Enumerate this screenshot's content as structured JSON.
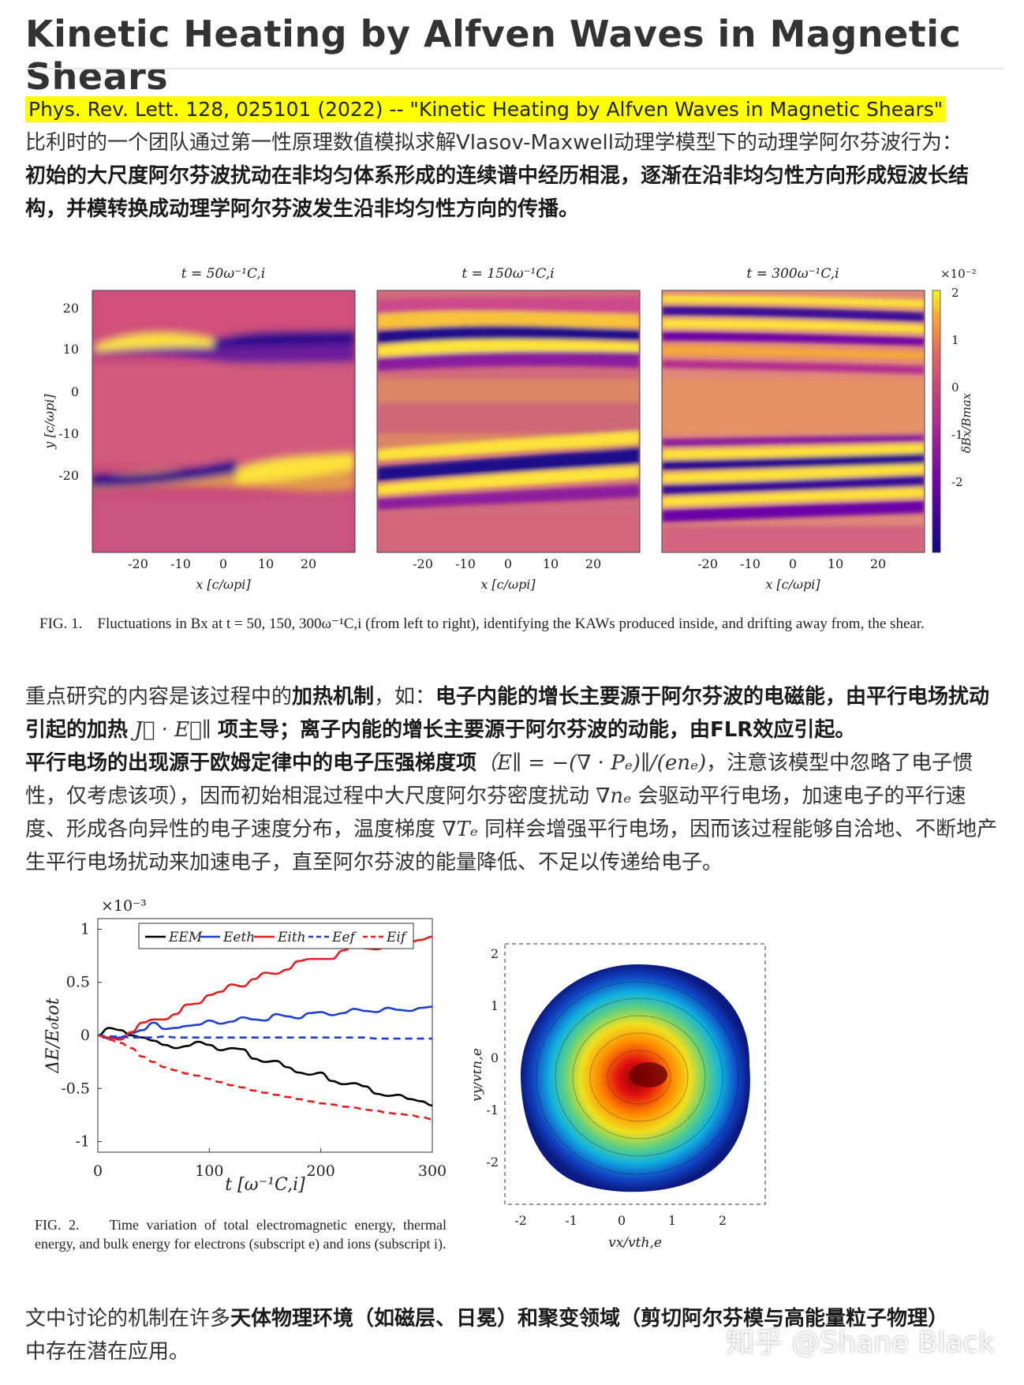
{
  "article": {
    "title": "Kinetic Heating by Alfven Waves in Magnetic Shears",
    "citation": "Phys. Rev. Lett. 128, 025101 (2022) -- \"Kinetic Heating by Alfven Waves in Magnetic Shears\"",
    "intro_plain": "比利时的一个团队通过第一性原理数值模拟求解Vlasov-Maxwell动理学模型下的动理学阿尔芬波行为：",
    "intro_bold": "初始的大尺度阿尔芬波扰动在非均匀体系形成的连续谱中经历相混，逐渐在沿非均匀性方向形成短波长结构，并模转换成动理学阿尔芬波发生沿非均匀性方向的传播。",
    "p2_a": "重点研究的内容是该过程中的",
    "p2_b": "加热机制",
    "p2_c": "，如：",
    "p2_d": "电子内能的增长主要源于阿尔芬波的电磁能，由平行电场扰动引起的加热",
    "p2_math1": "J⃗ · E⃗∥",
    "p2_e": "项主导；离子内能的增长主要源于阿尔芬波的动能，由FLR效应引起。",
    "p2_f": "平行电场的出现源于欧姆定律中的电子压强梯度项",
    "p2_math2": "（E∥ = −(∇ · Pₑ)∥/(enₑ)",
    "p2_g": "，注意该模型中忽略了电子惯性，仅考虑该项），因而初始相混过程中大尺度阿尔芬密度扰动",
    "p2_math3": "∇nₑ",
    "p2_h": "会驱动平行电场，加速电子的平行速度、形成各向异性的电子速度分布，温度梯度",
    "p2_math4": "∇Tₑ",
    "p2_i": "同样会增强平行电场，因而该过程能够自洽地、不断地产生平行电场扰动来加速电子，直至阿尔芬波的能量降低、不足以传递给电子。",
    "p3_a": "文中讨论的机制在许多",
    "p3_b": "天体物理环境（如磁层、日冕）和聚变领域（剪切阿尔芬模与高能量粒子物理）",
    "p3_c": "中存在潜在应用。",
    "watermark": "知乎 @Shane Black"
  },
  "figure1": {
    "panel_titles": [
      "t = 50ω⁻¹C,i",
      "t = 150ω⁻¹C,i",
      "t = 300ω⁻¹C,i"
    ],
    "x_ticks": [
      "-20",
      "-10",
      "0",
      "10",
      "20"
    ],
    "y_ticks": [
      "20",
      "10",
      "0",
      "-10",
      "-20"
    ],
    "xlabel": "x [c/ωpi]",
    "ylabel": "y [c/ωpi]",
    "colorbar_exp": "×10⁻²",
    "colorbar_ticks": [
      "2",
      "1",
      "0",
      "-1",
      "-2"
    ],
    "colorbar_label": "δBx/Bmax",
    "caption_label": "FIG. 1.",
    "caption": "Fluctuations in Bx at t = 50, 150, 300ω⁻¹C,i (from left to right), identifying the KAWs produced inside, and drifting away from, the shear."
  },
  "chart_data": [
    {
      "type": "line",
      "x": [
        0,
        10,
        20,
        30,
        40,
        50,
        60,
        70,
        80,
        90,
        100,
        110,
        120,
        130,
        140,
        150,
        160,
        170,
        180,
        190,
        200,
        210,
        220,
        230,
        240,
        250,
        260,
        270,
        280,
        290,
        300
      ],
      "series": [
        {
          "name": "E^EM",
          "color": "#000000",
          "dash": "solid",
          "values": [
            0,
            0.07,
            0.05,
            0.0,
            -0.02,
            -0.05,
            -0.09,
            -0.12,
            -0.1,
            -0.06,
            -0.09,
            -0.14,
            -0.12,
            -0.13,
            -0.22,
            -0.25,
            -0.24,
            -0.3,
            -0.35,
            -0.37,
            -0.35,
            -0.43,
            -0.46,
            -0.45,
            -0.48,
            -0.55,
            -0.57,
            -0.56,
            -0.6,
            -0.62,
            -0.66
          ]
        },
        {
          "name": "E_e^th",
          "color": "#1f3fcc",
          "dash": "solid",
          "values": [
            0,
            -0.03,
            -0.02,
            0.02,
            0.05,
            0.12,
            0.06,
            0.07,
            0.09,
            0.1,
            0.14,
            0.11,
            0.13,
            0.17,
            0.15,
            0.14,
            0.2,
            0.18,
            0.16,
            0.21,
            0.22,
            0.19,
            0.21,
            0.25,
            0.23,
            0.22,
            0.26,
            0.24,
            0.23,
            0.26,
            0.27
          ]
        },
        {
          "name": "E_i^th",
          "color": "#e02020",
          "dash": "solid",
          "values": [
            0,
            -0.02,
            -0.04,
            0.03,
            0.12,
            0.15,
            0.15,
            0.2,
            0.29,
            0.3,
            0.38,
            0.41,
            0.48,
            0.46,
            0.53,
            0.59,
            0.58,
            0.62,
            0.7,
            0.72,
            0.72,
            0.72,
            0.8,
            0.84,
            0.82,
            0.81,
            0.84,
            0.89,
            0.88,
            0.9,
            0.93
          ]
        },
        {
          "name": "E_e^f",
          "color": "#1f3fcc",
          "dash": "dashed",
          "values": [
            0,
            -0.01,
            -0.01,
            -0.02,
            -0.02,
            -0.02,
            -0.01,
            -0.02,
            -0.02,
            -0.02,
            -0.02,
            -0.02,
            -0.02,
            -0.02,
            -0.02,
            -0.02,
            -0.02,
            -0.02,
            -0.02,
            -0.02,
            -0.02,
            -0.02,
            -0.02,
            -0.02,
            -0.02,
            -0.03,
            -0.03,
            -0.03,
            -0.03,
            -0.03,
            -0.03
          ]
        },
        {
          "name": "E_i^f",
          "color": "#e02020",
          "dash": "dashed",
          "values": [
            0,
            -0.04,
            -0.07,
            -0.12,
            -0.2,
            -0.25,
            -0.3,
            -0.33,
            -0.36,
            -0.38,
            -0.41,
            -0.44,
            -0.47,
            -0.49,
            -0.52,
            -0.54,
            -0.56,
            -0.58,
            -0.6,
            -0.62,
            -0.64,
            -0.65,
            -0.67,
            -0.68,
            -0.7,
            -0.71,
            -0.73,
            -0.74,
            -0.75,
            -0.77,
            -0.79
          ]
        }
      ],
      "xlim": [
        0,
        300
      ],
      "ylim": [
        -1.1,
        1.1
      ],
      "x_ticks": [
        0,
        100,
        200,
        300
      ],
      "y_ticks": [
        1,
        0.5,
        0,
        -0.5,
        -1
      ],
      "y_tick_labels": [
        "1",
        "0.5",
        "0",
        "-0.5",
        "-1"
      ],
      "y_exponent": "×10⁻³",
      "xlabel": "t [ω⁻¹C,i]",
      "ylabel": "ΔE/E₀tot",
      "legend": [
        "EEM",
        "Eeth",
        "Eith",
        "Eef",
        "Eif"
      ],
      "legend_position": "top",
      "grid": false
    }
  ],
  "figure2": {
    "caption_label": "FIG. 2.",
    "caption": "Time variation of total electromagnetic energy, thermal energy, and bulk energy for electrons (subscript e) and ions (subscript i).",
    "vdist_x_ticks": [
      "-2",
      "-1",
      "0",
      "1",
      "2"
    ],
    "vdist_y_ticks": [
      "2",
      "1",
      "0",
      "-1",
      "-2"
    ],
    "vdist_xlabel": "vx/vth,e",
    "vdist_ylabel": "vy/vth,e"
  }
}
